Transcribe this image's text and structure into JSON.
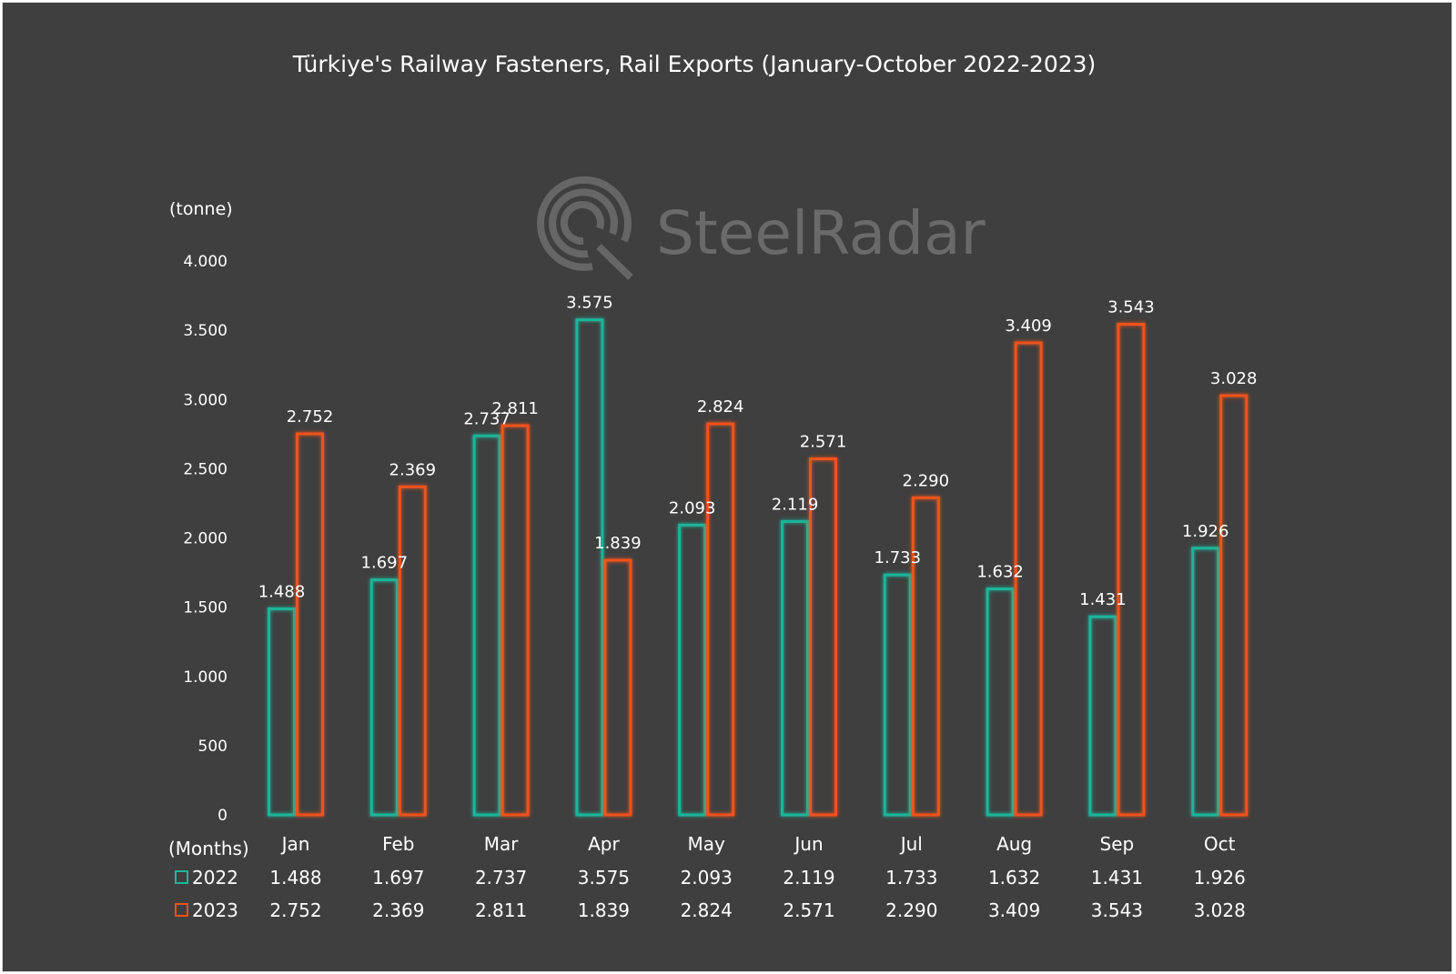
{
  "chart_data": {
    "type": "bar",
    "title": "Türkiye's Railway Fasteners, Rail Exports (January-October 2022-2023)",
    "ylabel": "(tonne)",
    "xlabel": "(Months)",
    "categories": [
      "Jan",
      "Feb",
      "Mar",
      "Apr",
      "May",
      "Jun",
      "Jul",
      "Aug",
      "Sep",
      "Oct"
    ],
    "ylim": [
      0,
      4000
    ],
    "yticks": [
      0,
      500,
      1000,
      1500,
      2000,
      2500,
      3000,
      3500,
      4000
    ],
    "ytick_labels": [
      "0",
      "500",
      "1.000",
      "1.500",
      "2.000",
      "2.500",
      "3.000",
      "3.500",
      "4.000"
    ],
    "grid": false,
    "legend": "bottom-left data table",
    "series": [
      {
        "name": "2022",
        "color": "#1fb59a",
        "values": [
          1488,
          1697,
          2737,
          3575,
          2093,
          2119,
          1733,
          1632,
          1431,
          1926
        ],
        "labels": [
          "1.488",
          "1.697",
          "2.737",
          "3.575",
          "2.093",
          "2.119",
          "1.733",
          "1.632",
          "1.431",
          "1.926"
        ]
      },
      {
        "name": "2023",
        "color": "#f0531d",
        "values": [
          2752,
          2369,
          2811,
          1839,
          2824,
          2571,
          2290,
          3409,
          3543,
          3028
        ],
        "labels": [
          "2.752",
          "2.369",
          "2.811",
          "1.839",
          "2.824",
          "2.571",
          "2.290",
          "3.409",
          "3.543",
          "3.028"
        ]
      }
    ]
  },
  "watermark": {
    "text": "SteelRadar",
    "icon": "steelradar-logo-icon"
  },
  "colors": {
    "background": "#3f3f3f",
    "text": "#ffffff"
  }
}
